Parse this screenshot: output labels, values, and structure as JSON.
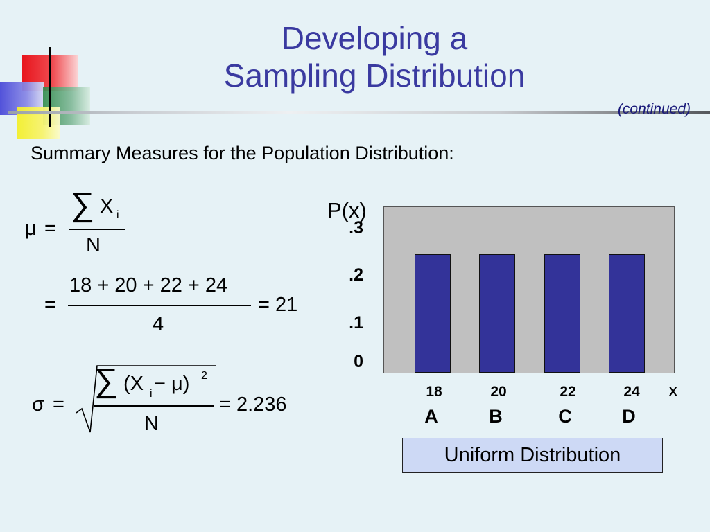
{
  "slide": {
    "title_line1": "Developing a",
    "title_line2": "Sampling Distribution",
    "continued": "(continued)",
    "summary": "Summary Measures for the Population Distribution:"
  },
  "formulas": {
    "mu_symbol": "μ",
    "equals": "=",
    "sum_symbol": "∑",
    "X": "X",
    "i": "i",
    "N": "N",
    "mean_numerator": "18 + 20 + 22 + 24",
    "mean_denominator": "4",
    "mean_result": "= 21",
    "sigma_symbol": "σ",
    "sigma_numerator_open": "(X",
    "sigma_numerator_rest": " − μ)",
    "sup2": "2",
    "sigma_result": "= 2.236"
  },
  "chart_data": {
    "type": "bar",
    "ylabel": "P(x)",
    "xlabel": "x",
    "categories": [
      "18",
      "20",
      "22",
      "24"
    ],
    "category_letters": [
      "A",
      "B",
      "C",
      "D"
    ],
    "values": [
      0.25,
      0.25,
      0.25,
      0.25
    ],
    "yticks": [
      ".3",
      ".2",
      ".1",
      "0"
    ],
    "ylim": [
      0,
      0.35
    ],
    "grid": true,
    "annotation": "Uniform Distribution",
    "colors": {
      "bar": "#333399",
      "plot_background": "#c0c0c0",
      "title": "#3a3aa0"
    }
  }
}
